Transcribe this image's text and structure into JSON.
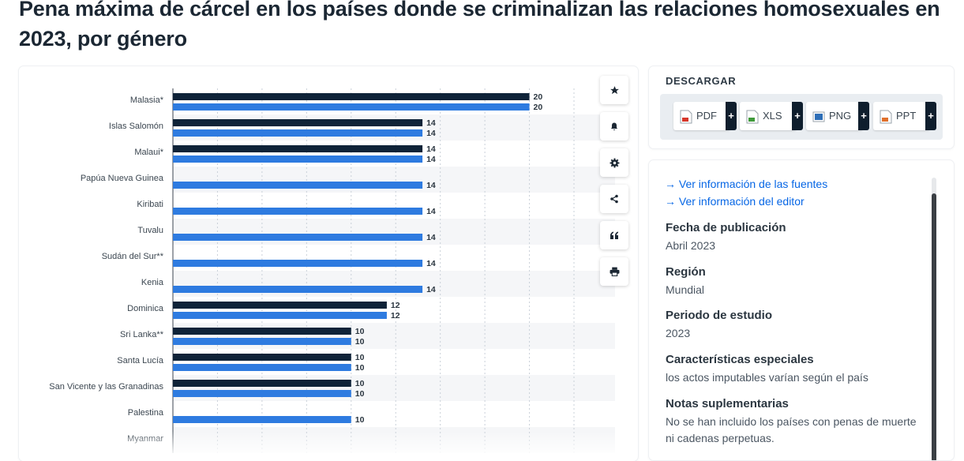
{
  "page": {
    "title": "Pena máxima de cárcel en los países donde se criminalizan las relaciones homosexuales en 2023, por género"
  },
  "colors": {
    "series_dark": "#0f2338",
    "series_blue": "#2e7be0",
    "accent_link": "#0666e5"
  },
  "chart_data": {
    "type": "bar",
    "orientation": "horizontal",
    "categories": [
      "Malasia*",
      "Islas Salomón",
      "Malaui*",
      "Papúa Nueva Guinea",
      "Kiribati",
      "Tuvalu",
      "Sudán del Sur**",
      "Kenia",
      "Dominica",
      "Sri Lanka**",
      "Santa Lucía",
      "San Vicente y las Granadinas",
      "Palestina",
      "Myanmar"
    ],
    "series": [
      {
        "color": "#0f2338",
        "values": [
          20,
          14,
          14,
          null,
          null,
          null,
          null,
          null,
          12,
          10,
          10,
          10,
          null,
          null
        ]
      },
      {
        "color": "#2e7be0",
        "values": [
          20,
          14,
          14,
          14,
          14,
          14,
          14,
          14,
          12,
          10,
          10,
          10,
          10,
          null
        ]
      }
    ],
    "xlim": [
      0,
      22.5
    ],
    "grid": true,
    "data_labels": true
  },
  "toolbar": {
    "buttons": [
      {
        "name": "favorite-button",
        "icon": "star-icon"
      },
      {
        "name": "notification-button",
        "icon": "bell-icon"
      },
      {
        "name": "settings-button",
        "icon": "gear-icon"
      },
      {
        "name": "share-button",
        "icon": "share-icon"
      },
      {
        "name": "cite-button",
        "icon": "quote-icon"
      },
      {
        "name": "print-button",
        "icon": "printer-icon"
      }
    ]
  },
  "download": {
    "title": "DESCARGAR",
    "formats": [
      {
        "label": "PDF",
        "icon": "pdf-file-icon",
        "color": "#d6372a"
      },
      {
        "label": "XLS",
        "icon": "xls-file-icon",
        "color": "#3f9a3a"
      },
      {
        "label": "PNG",
        "icon": "png-file-icon",
        "color": "#2f6fb7"
      },
      {
        "label": "PPT",
        "icon": "ppt-file-icon",
        "color": "#e0702c"
      }
    ],
    "plus": "+"
  },
  "info": {
    "links": [
      "Ver información de las fuentes",
      "Ver información del editor"
    ],
    "fields": [
      {
        "label": "Fecha de publicación",
        "value": "Abril 2023"
      },
      {
        "label": "Región",
        "value": "Mundial"
      },
      {
        "label": "Periodo de estudio",
        "value": "2023"
      },
      {
        "label": "Características especiales",
        "value": "los actos imputables varían según el país"
      },
      {
        "label": "Notas suplementarias",
        "value": "No se han incluido los países con penas de muerte ni cadenas perpetuas."
      }
    ]
  }
}
